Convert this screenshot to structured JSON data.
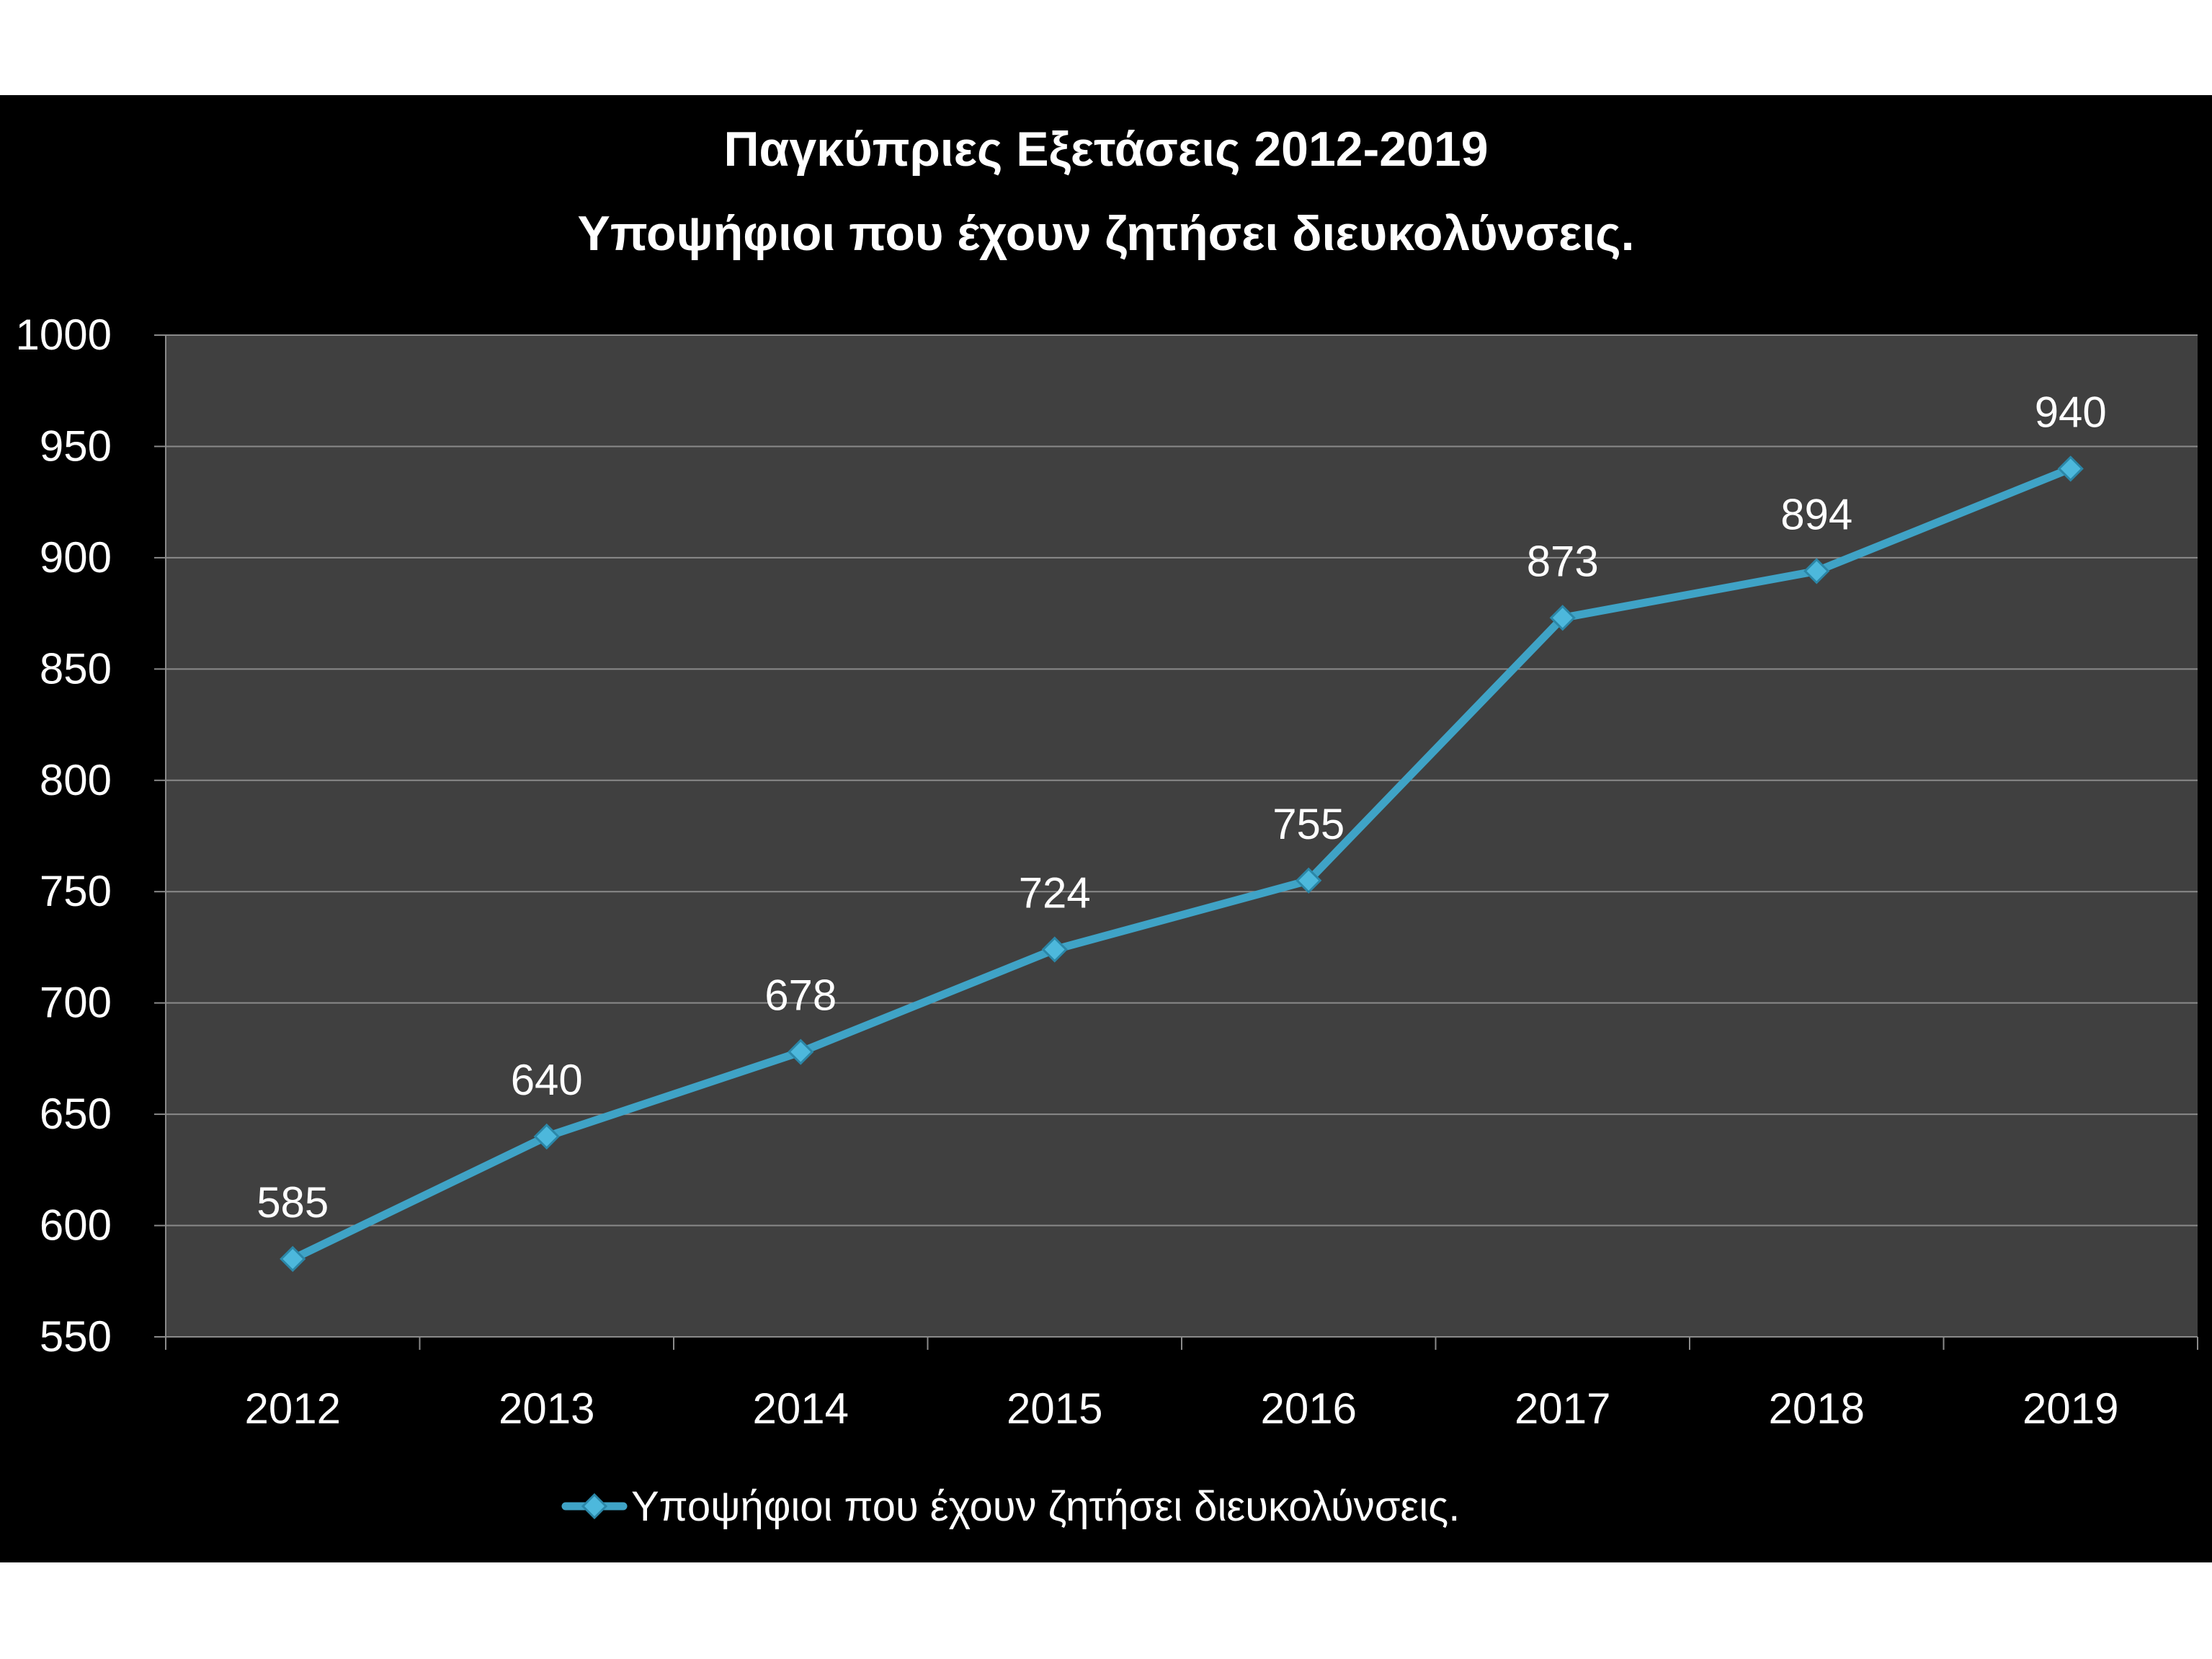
{
  "chart_data": {
    "type": "line",
    "title": "Παγκύπριες Εξετάσεις 2012-2019",
    "subtitle": "Υποψήφιοι που έχουν ζητήσει διευκολύνσεις.",
    "categories": [
      "2012",
      "2013",
      "2014",
      "2015",
      "2016",
      "2017",
      "2018",
      "2019"
    ],
    "series": [
      {
        "name": "Υποψήφιοι που έχουν ζητήσει διευκολύνσεις.",
        "values": [
          585,
          640,
          678,
          724,
          755,
          873,
          894,
          940
        ],
        "color": "#3fa3c6"
      }
    ],
    "ylim": [
      550,
      1000
    ],
    "yticks": [
      550,
      600,
      650,
      700,
      750,
      800,
      850,
      900,
      950,
      1000
    ],
    "grid": true,
    "legend": "bottom",
    "plot_background": "#404040",
    "background": "#000000"
  }
}
